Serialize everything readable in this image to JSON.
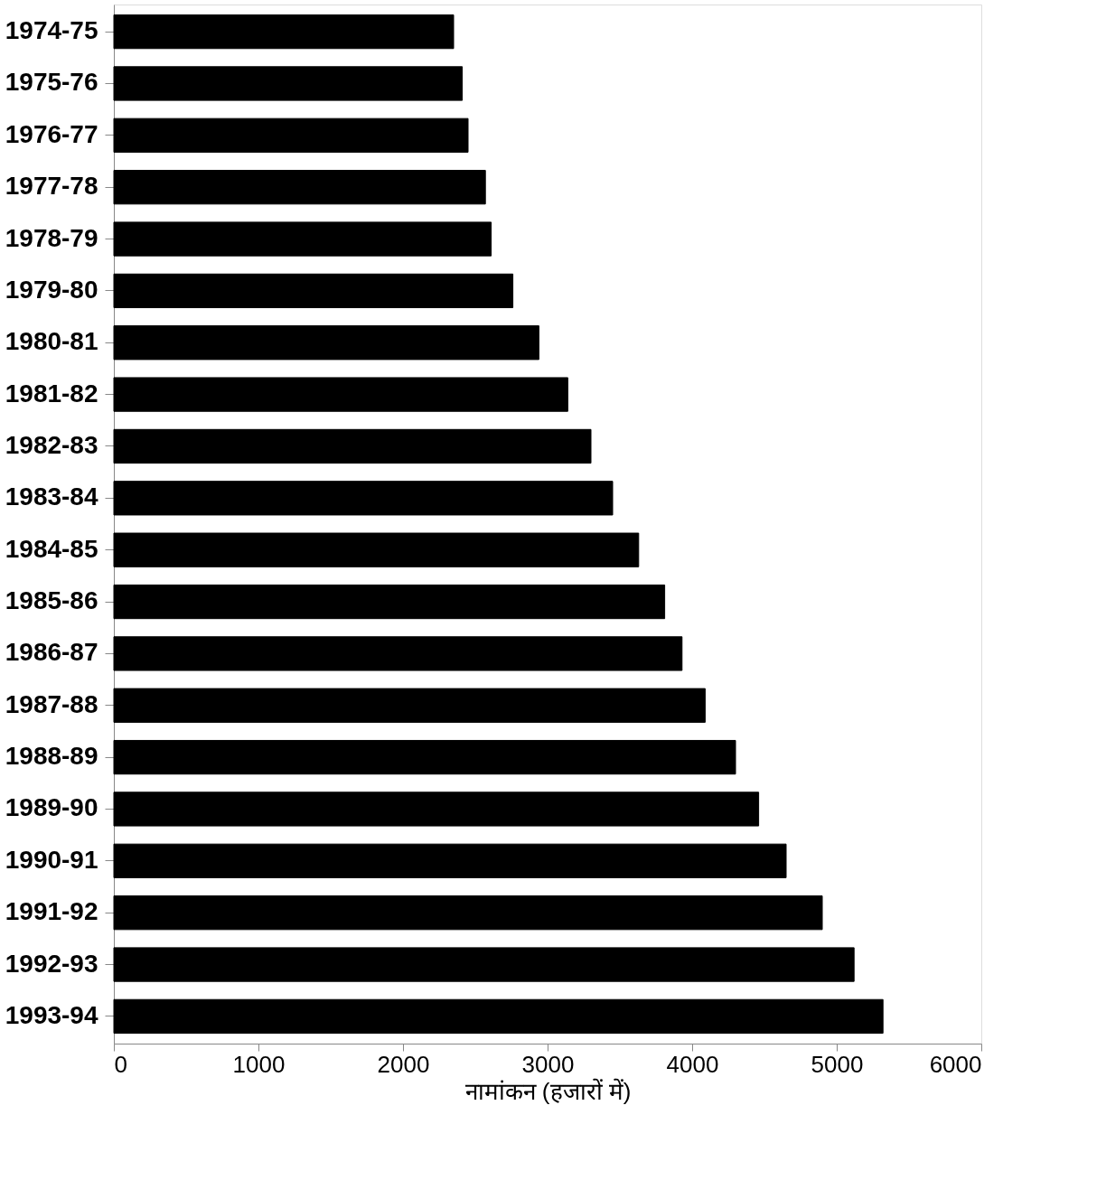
{
  "chart_data": {
    "type": "bar",
    "orientation": "horizontal",
    "xlabel": "नामांकन (हजारों में)",
    "categories": [
      "1974-75",
      "1975-76",
      "1976-77",
      "1977-78",
      "1978-79",
      "1979-80",
      "1980-81",
      "1981-82",
      "1982-83",
      "1983-84",
      "1984-85",
      "1985-86",
      "1986-87",
      "1987-88",
      "1988-89",
      "1989-90",
      "1990-91",
      "1991-92",
      "1992-93",
      "1993-94"
    ],
    "values": [
      2350,
      2410,
      2450,
      2570,
      2610,
      2760,
      2940,
      3140,
      3300,
      3450,
      3630,
      3810,
      3930,
      4090,
      4300,
      4460,
      4650,
      4900,
      5120,
      5320
    ],
    "color": "#000000",
    "xlim": [
      0,
      6000
    ],
    "xticks": [
      0,
      1000,
      2000,
      3000,
      4000,
      5000,
      6000
    ],
    "grid": false
  }
}
